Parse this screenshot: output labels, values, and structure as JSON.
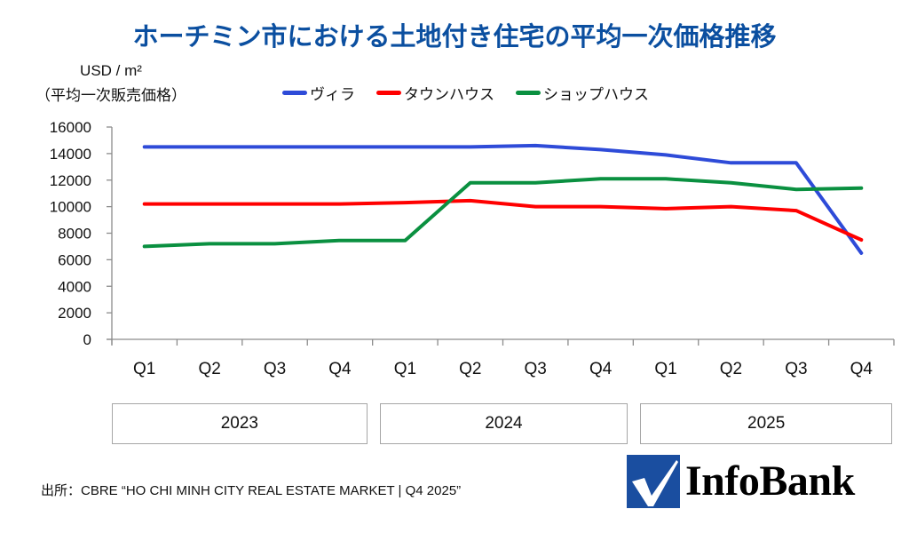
{
  "title": "ホーチミン市における土地付き住宅の平均一次価格推移",
  "unit_label": {
    "line1": "USD / m²",
    "line2": "（平均一次販売価格）"
  },
  "source": "出所：CBRE “HO CHI MINH CITY REAL ESTATE MARKET | Q4 2025”",
  "logo": {
    "text": "InfoBank",
    "icon": "checkmark-icon",
    "color": "#1a4ea0"
  },
  "chart_data": {
    "type": "line",
    "title": "ホーチミン市における土地付き住宅の平均一次価格推移",
    "xlabel": "",
    "ylabel": "USD / m²（平均一次販売価格）",
    "categories": [
      "Q1",
      "Q2",
      "Q3",
      "Q4",
      "Q1",
      "Q2",
      "Q3",
      "Q4",
      "Q1",
      "Q2",
      "Q3",
      "Q4"
    ],
    "year_groups": [
      {
        "label": "2023",
        "span": 4
      },
      {
        "label": "2024",
        "span": 4
      },
      {
        "label": "2025",
        "span": 4
      }
    ],
    "ylim": [
      0,
      16000
    ],
    "yticks": [
      0,
      2000,
      4000,
      6000,
      8000,
      10000,
      12000,
      14000,
      16000
    ],
    "ytick_labels": [
      "0",
      "2000",
      "4000",
      "6000",
      "8000",
      "10000",
      "12000",
      "14000",
      "16000"
    ],
    "grid": false,
    "legend_position": "top",
    "series": [
      {
        "name": "ヴィラ",
        "color": "#2e4bd8",
        "values": [
          14500,
          14500,
          14500,
          14500,
          14500,
          14500,
          14600,
          14300,
          13900,
          13300,
          13300,
          6500
        ]
      },
      {
        "name": "タウンハウス",
        "color": "#ff0000",
        "values": [
          10200,
          10200,
          10200,
          10200,
          10300,
          10450,
          10000,
          10000,
          9850,
          10000,
          9700,
          7500
        ]
      },
      {
        "name": "ショップハウス",
        "color": "#0a9040",
        "values": [
          7000,
          7200,
          7200,
          7450,
          7450,
          11800,
          11800,
          12100,
          12100,
          11800,
          11300,
          11400
        ]
      }
    ]
  }
}
